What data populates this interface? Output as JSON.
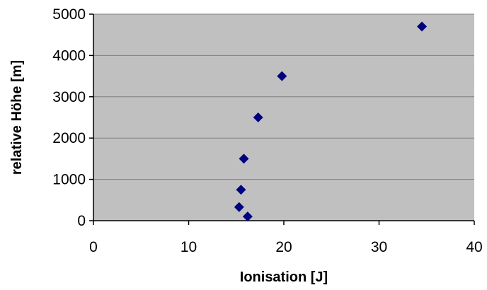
{
  "chart_data": {
    "type": "scatter",
    "xlabel": "Ionisation [J]",
    "ylabel": "relative Höhe [m]",
    "xlim": [
      0,
      40
    ],
    "ylim": [
      0,
      5000
    ],
    "xticks": [
      0,
      10,
      20,
      30,
      40
    ],
    "yticks": [
      0,
      1000,
      2000,
      3000,
      4000,
      5000
    ],
    "grid": "horizontal major lines",
    "legend": "none",
    "colors": {
      "plot_background": "#c0c0c0",
      "marker": "#000080",
      "gridline": "#808080",
      "axis": "#000000"
    },
    "series": [
      {
        "marker": "diamond",
        "points": [
          {
            "x": 16.2,
            "y": 100
          },
          {
            "x": 15.3,
            "y": 330
          },
          {
            "x": 15.5,
            "y": 750
          },
          {
            "x": 15.8,
            "y": 1500
          },
          {
            "x": 17.3,
            "y": 2500
          },
          {
            "x": 19.8,
            "y": 3500
          },
          {
            "x": 34.5,
            "y": 4700
          }
        ]
      }
    ]
  }
}
